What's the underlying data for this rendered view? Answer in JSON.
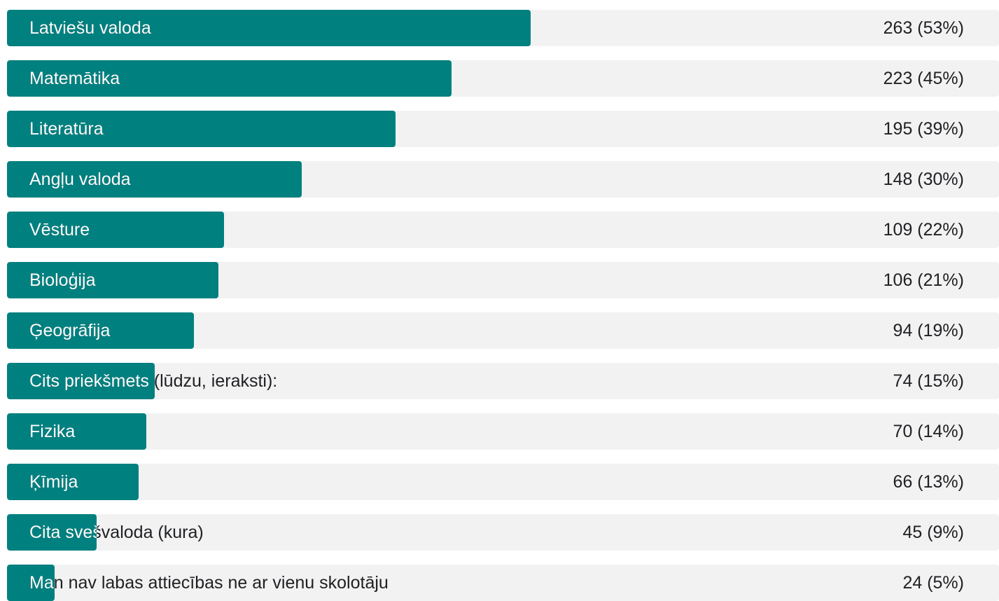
{
  "colors": {
    "bar": "#00807f",
    "track": "#f2f2f2",
    "text_dark": "#202124",
    "text_light": "#ffffff"
  },
  "chart_data": {
    "type": "bar",
    "orientation": "horizontal",
    "categories": [
      "Latviešu valoda",
      "Matemātika",
      "Literatūra",
      "Angļu valoda",
      "Vēsture",
      "Bioloģija",
      "Ģeogrāfija",
      "Cits priekšmets (lūdzu, ieraksti):",
      "Fizika",
      "Ķīmija",
      "Cita svešvaloda (kura)",
      "Man nav labas attiecības ne ar vienu skolotāju"
    ],
    "values": [
      263,
      223,
      195,
      148,
      109,
      106,
      94,
      74,
      70,
      66,
      45,
      24
    ],
    "value_labels": [
      "263 (53%)",
      "223 (45%)",
      "195 (39%)",
      "148 (30%)",
      "109 (22%)",
      "106 (21%)",
      "94 (19%)",
      "74 (15%)",
      "70 (14%)",
      "66 (13%)",
      "45 (9%)",
      "24 (5%)"
    ],
    "xlim": [
      0,
      498
    ],
    "legend": "none",
    "grid": false
  }
}
